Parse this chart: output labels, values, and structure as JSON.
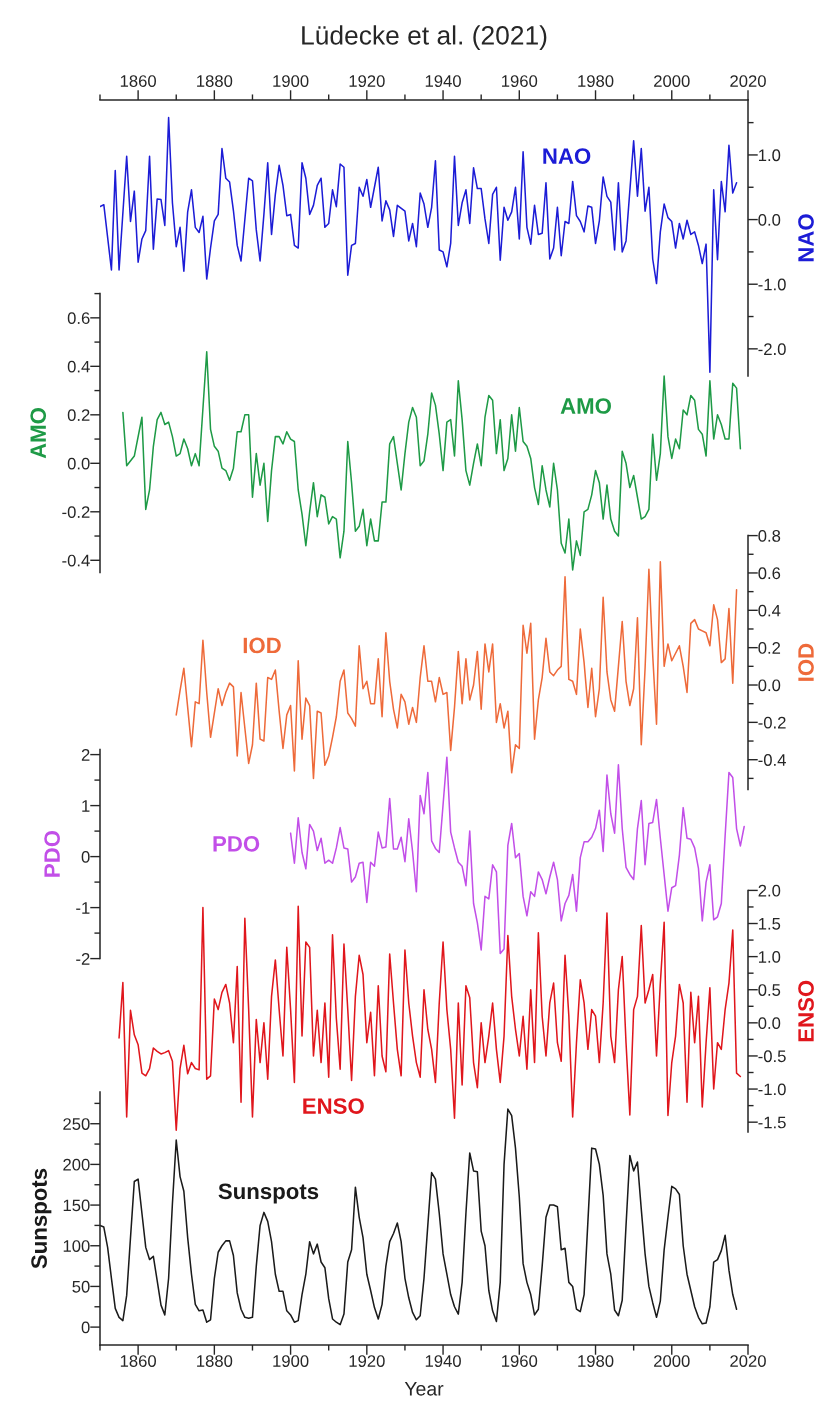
{
  "chart_data": [
    {
      "type": "line",
      "title": "Lüdecke et al. (2021)",
      "y2label": "NAO",
      "xlim": [
        1850,
        2020
      ],
      "xticks": [
        {
          "value": 1850,
          "label": null
        },
        1860,
        {
          "value": 1870,
          "label": null
        },
        1880,
        {
          "value": 1890,
          "label": null
        },
        1900,
        {
          "value": 1910,
          "label": null
        },
        1920,
        {
          "value": 1930,
          "label": null
        },
        1940,
        {
          "value": 1950,
          "label": null
        },
        1960,
        {
          "value": 1970,
          "label": null
        },
        1980,
        {
          "value": 1990,
          "label": null
        },
        2000,
        {
          "value": 2010,
          "label": null
        },
        2020
      ],
      "y2lim": [
        -2.42,
        1.85
      ],
      "y2ticks": [
        {
          "value": 1.5,
          "label": null
        },
        {
          "value": 1.0,
          "label": "1.0"
        },
        {
          "value": 0.5,
          "label": null
        },
        {
          "value": 0.0,
          "label": "0.0"
        },
        {
          "value": -0.5,
          "label": null
        },
        {
          "value": -1.0,
          "label": "-1.0"
        },
        {
          "value": -1.5,
          "label": null
        },
        {
          "value": -2.0,
          "label": "-2.0"
        }
      ],
      "x": [
        1850,
        1851,
        1853,
        1854,
        1855,
        1857,
        1858,
        1859,
        1860,
        1861,
        1862,
        1863,
        1864,
        1865,
        1866,
        1867,
        1868,
        1869,
        1870,
        1871,
        1872,
        1873,
        1874,
        1875,
        1876,
        1877,
        1878,
        1879,
        1880,
        1881,
        1882,
        1883,
        1884,
        1885,
        1886,
        1887,
        1889,
        1890,
        1891,
        1892,
        1893,
        1894,
        1895,
        1896,
        1897,
        1898,
        1899,
        1900,
        1901,
        1902,
        1903,
        1904,
        1905,
        1906,
        1907,
        1908,
        1909,
        1910,
        1911,
        1912,
        1913,
        1914,
        1915,
        1916,
        1917,
        1918,
        1919,
        1920,
        1921,
        1922,
        1923,
        1924,
        1925,
        1926,
        1927,
        1928,
        1930,
        1931,
        1932,
        1933,
        1934,
        1935,
        1936,
        1937,
        1938,
        1939,
        1940,
        1941,
        1942,
        1943,
        1944,
        1945,
        1946,
        1947,
        1948,
        1949,
        1950,
        1951,
        1952,
        1953,
        1954,
        1955,
        1956,
        1957,
        1958,
        1959,
        1960,
        1961,
        1962,
        1963,
        1964,
        1965,
        1966,
        1967,
        1968,
        1969,
        1970,
        1971,
        1972,
        1973,
        1974,
        1975,
        1976,
        1977,
        1978,
        1979,
        1980,
        1981,
        1982,
        1983,
        1984,
        1985,
        1986,
        1987,
        1988,
        1990,
        1991,
        1992,
        1993,
        1994,
        1995,
        1996,
        1997,
        1998,
        1999,
        2000,
        2001,
        2002,
        2003,
        2004,
        2005,
        2006,
        2007,
        2008,
        2009,
        2010,
        2011,
        2012,
        2013,
        2014,
        2015,
        2016,
        2017
      ],
      "series": [
        {
          "name": "NAO",
          "color": "#1c1cd6",
          "axis": "y2",
          "values": [
            0.2,
            0.23,
            -0.78,
            0.76,
            -0.78,
            0.98,
            -0.03,
            0.44,
            -0.66,
            -0.3,
            -0.17,
            0.98,
            -0.46,
            0.32,
            0.31,
            -0.09,
            1.58,
            0.26,
            -0.42,
            -0.12,
            -0.8,
            0.12,
            0.46,
            -0.12,
            -0.2,
            0.05,
            -0.92,
            -0.44,
            -0.02,
            0.08,
            1.1,
            0.64,
            0.58,
            0.14,
            -0.4,
            -0.64,
            0.64,
            0.6,
            -0.16,
            -0.64,
            0.08,
            0.88,
            -0.23,
            0.39,
            0.84,
            0.53,
            0.06,
            0.08,
            -0.4,
            -0.44,
            0.88,
            0.64,
            0.08,
            0.22,
            0.53,
            0.64,
            -0.12,
            -0.06,
            0.46,
            0.2,
            0.86,
            0.81,
            -0.86,
            -0.4,
            -0.37,
            0.5,
            0.36,
            0.62,
            0.19,
            0.5,
            0.81,
            -0.02,
            0.29,
            0.15,
            -0.26,
            0.22,
            0.13,
            -0.33,
            -0.06,
            -0.42,
            0.41,
            0.24,
            -0.12,
            0.19,
            0.91,
            -0.47,
            -0.5,
            -0.73,
            -0.37,
            0.98,
            -0.09,
            0.26,
            0.46,
            -0.06,
            0.8,
            0.48,
            0.48,
            0.01,
            -0.37,
            0.39,
            0.5,
            -0.63,
            0.19,
            -0.01,
            0.12,
            0.5,
            -0.3,
            1.05,
            -0.12,
            -0.38,
            0.22,
            -0.23,
            -0.21,
            0.57,
            -0.61,
            -0.44,
            0.19,
            -0.56,
            -0.03,
            -0.06,
            0.59,
            0.06,
            -0.03,
            -0.19,
            0.21,
            0.19,
            -0.37,
            -0.02,
            0.66,
            0.36,
            0.27,
            -0.47,
            0.57,
            -0.5,
            -0.33,
            1.22,
            0.36,
            1.1,
            0.13,
            0.5,
            -0.61,
            -0.99,
            -0.19,
            0.24,
            0.03,
            -0.03,
            -0.44,
            -0.06,
            -0.3,
            -0.01,
            -0.23,
            -0.19,
            -0.4,
            -0.68,
            -0.38,
            -2.36,
            0.46,
            -0.62,
            0.59,
            0.12,
            1.15,
            0.41,
            0.57
          ]
        }
      ]
    },
    {
      "type": "line",
      "ylabel": "AMO",
      "xlim": [
        1850,
        2020
      ],
      "tick_labels": "y",
      "ylim": [
        -0.45,
        0.7
      ],
      "yticks": [
        {
          "value": 0.7,
          "label": null
        },
        0.6,
        {
          "value": 0.5,
          "label": null
        },
        0.4,
        {
          "value": 0.3,
          "label": null
        },
        0.2,
        {
          "value": 0.1,
          "label": null
        },
        {
          "value": 0.0,
          "label": "0.0"
        },
        {
          "value": -0.1,
          "label": null
        },
        -0.2,
        {
          "value": -0.3,
          "label": null
        },
        -0.4
      ],
      "x": [
        1856,
        1857,
        1859,
        1861,
        1862,
        1863,
        1864,
        1865,
        1866,
        1867,
        1868,
        1869,
        1870,
        1871,
        1872,
        1873,
        1874,
        1875,
        1876,
        1878,
        1879,
        1880,
        1881,
        1882,
        1883,
        1884,
        1885,
        1886,
        1887,
        1888,
        1889,
        1890,
        1891,
        1892,
        1893,
        1894,
        1895,
        1896,
        1897,
        1898,
        1899,
        1900,
        1901,
        1902,
        1903,
        1904,
        1905,
        1906,
        1907,
        1908,
        1909,
        1910,
        1911,
        1912,
        1913,
        1914,
        1915,
        1916,
        1917,
        1918,
        1919,
        1920,
        1921,
        1922,
        1923,
        1924,
        1925,
        1926,
        1927,
        1928,
        1929,
        1930,
        1931,
        1932,
        1933,
        1934,
        1935,
        1936,
        1937,
        1938,
        1939,
        1940,
        1941,
        1942,
        1943,
        1944,
        1945,
        1946,
        1947,
        1948,
        1949,
        1950,
        1951,
        1952,
        1953,
        1954,
        1955,
        1956,
        1957,
        1958,
        1959,
        1960,
        1961,
        1962,
        1963,
        1964,
        1965,
        1966,
        1967,
        1968,
        1969,
        1970,
        1971,
        1972,
        1973,
        1974,
        1975,
        1976,
        1977,
        1978,
        1979,
        1980,
        1981,
        1982,
        1983,
        1984,
        1985,
        1986,
        1987,
        1988,
        1989,
        1990,
        1991,
        1992,
        1993,
        1994,
        1995,
        1996,
        1997,
        1998,
        1999,
        2000,
        2001,
        2002,
        2003,
        2004,
        2005,
        2006,
        2007,
        2008,
        2009,
        2010,
        2011,
        2012,
        2013,
        2014,
        2015,
        2016,
        2017,
        2018
      ],
      "series": [
        {
          "name": "AMO",
          "color": "#1e9a46",
          "values": [
            0.21,
            -0.01,
            0.03,
            0.19,
            -0.19,
            -0.11,
            0.07,
            0.18,
            0.21,
            0.16,
            0.17,
            0.11,
            0.03,
            0.04,
            0.1,
            0.06,
            -0.01,
            0.04,
            -0.01,
            0.46,
            0.14,
            0.07,
            0.05,
            -0.02,
            -0.03,
            -0.07,
            -0.02,
            0.13,
            0.13,
            0.2,
            0.2,
            -0.14,
            0.04,
            -0.09,
            0.0,
            -0.24,
            -0.03,
            0.11,
            0.11,
            0.08,
            0.13,
            0.1,
            0.09,
            -0.11,
            -0.21,
            -0.34,
            -0.2,
            -0.08,
            -0.22,
            -0.13,
            -0.14,
            -0.25,
            -0.22,
            -0.23,
            -0.39,
            -0.28,
            0.09,
            -0.08,
            -0.28,
            -0.26,
            -0.19,
            -0.34,
            -0.23,
            -0.32,
            -0.32,
            -0.16,
            -0.16,
            0.08,
            0.11,
            0.0,
            -0.11,
            0.04,
            0.17,
            0.23,
            0.19,
            -0.01,
            0.01,
            0.12,
            0.29,
            0.24,
            0.12,
            -0.03,
            0.17,
            0.18,
            0.03,
            0.34,
            0.18,
            -0.03,
            -0.09,
            0.0,
            0.08,
            -0.01,
            0.19,
            0.28,
            0.26,
            0.04,
            0.18,
            -0.03,
            0.02,
            0.2,
            0.05,
            0.23,
            0.09,
            0.07,
            0.02,
            -0.1,
            -0.17,
            -0.01,
            -0.11,
            -0.18,
            0.0,
            -0.11,
            -0.33,
            -0.37,
            -0.23,
            -0.44,
            -0.32,
            -0.38,
            -0.2,
            -0.19,
            -0.13,
            -0.03,
            -0.08,
            -0.23,
            -0.09,
            -0.23,
            -0.28,
            -0.3,
            0.05,
            0.0,
            -0.1,
            -0.05,
            -0.14,
            -0.23,
            -0.22,
            -0.19,
            0.12,
            -0.07,
            0.04,
            0.36,
            0.11,
            0.02,
            0.1,
            0.06,
            0.22,
            0.2,
            0.28,
            0.26,
            0.14,
            0.12,
            0.03,
            0.34,
            0.1,
            0.2,
            0.16,
            0.1,
            0.1,
            0.33,
            0.31,
            0.06
          ]
        }
      ]
    },
    {
      "type": "line",
      "y2label": "IOD",
      "tick_labels": "y",
      "y2lim": [
        -0.56,
        0.8
      ],
      "y2ticks": [
        0.8,
        {
          "value": 0.7,
          "label": null
        },
        0.6,
        {
          "value": 0.5,
          "label": null
        },
        0.4,
        {
          "value": 0.3,
          "label": null
        },
        0.2,
        {
          "value": 0.1,
          "label": null
        },
        {
          "value": 0.0,
          "label": "0.0"
        },
        {
          "value": -0.1,
          "label": null
        },
        -0.2,
        {
          "value": -0.3,
          "label": null
        },
        -0.4,
        {
          "value": -0.5,
          "label": null
        }
      ],
      "x": [
        1870,
        1871,
        1872,
        1873,
        1874,
        1875,
        1876,
        1877,
        1878,
        1879,
        1880,
        1881,
        1882,
        1883,
        1884,
        1885,
        1886,
        1887,
        1888,
        1889,
        1890,
        1891,
        1892,
        1893,
        1894,
        1895,
        1896,
        1897,
        1898,
        1899,
        1900,
        1901,
        1902,
        1903,
        1904,
        1905,
        1906,
        1907,
        1908,
        1909,
        1910,
        1911,
        1912,
        1913,
        1914,
        1915,
        1916,
        1917,
        1918,
        1919,
        1920,
        1921,
        1922,
        1923,
        1924,
        1925,
        1926,
        1927,
        1928,
        1929,
        1930,
        1931,
        1932,
        1933,
        1934,
        1935,
        1936,
        1937,
        1938,
        1939,
        1940,
        1941,
        1942,
        1943,
        1944,
        1945,
        1946,
        1947,
        1948,
        1949,
        1950,
        1951,
        1952,
        1953,
        1954,
        1955,
        1956,
        1957,
        1958,
        1959,
        1960,
        1961,
        1962,
        1963,
        1964,
        1965,
        1966,
        1967,
        1968,
        1969,
        1970,
        1971,
        1972,
        1973,
        1974,
        1975,
        1976,
        1977,
        1978,
        1979,
        1980,
        1981,
        1982,
        1983,
        1984,
        1985,
        1986,
        1987,
        1988,
        1989,
        1990,
        1991,
        1992,
        1993,
        1994,
        1995,
        1996,
        1997,
        1998,
        1999,
        2000,
        2001,
        2002,
        2003,
        2004,
        2005,
        2006,
        2007,
        2008,
        2009,
        2010,
        2011,
        2012,
        2013,
        2014,
        2015,
        2016,
        2017
      ],
      "series": [
        {
          "name": "IOD",
          "color": "#ee6a3a",
          "axis": "y2",
          "values": [
            -0.16,
            -0.03,
            0.09,
            -0.12,
            -0.33,
            -0.09,
            -0.1,
            0.24,
            -0.04,
            -0.28,
            -0.15,
            -0.02,
            -0.11,
            -0.04,
            0.01,
            -0.01,
            -0.38,
            -0.04,
            -0.23,
            -0.42,
            -0.32,
            0.01,
            -0.29,
            -0.3,
            0.04,
            0.03,
            0.08,
            -0.14,
            -0.34,
            -0.16,
            -0.11,
            -0.46,
            0.13,
            -0.29,
            -0.07,
            -0.11,
            -0.5,
            -0.14,
            -0.15,
            -0.43,
            -0.38,
            -0.28,
            -0.17,
            0.02,
            0.08,
            -0.15,
            -0.18,
            -0.22,
            0.21,
            -0.02,
            0.02,
            -0.1,
            -0.1,
            0.14,
            -0.17,
            0.28,
            0.02,
            -0.13,
            -0.23,
            -0.05,
            -0.09,
            -0.21,
            -0.12,
            -0.2,
            0.04,
            0.21,
            0.02,
            0.02,
            -0.09,
            0.04,
            -0.05,
            -0.04,
            -0.35,
            -0.12,
            0.18,
            -0.1,
            0.14,
            -0.08,
            0.0,
            0.18,
            -0.13,
            0.22,
            0.07,
            0.22,
            -0.2,
            -0.1,
            -0.23,
            -0.14,
            -0.47,
            -0.32,
            -0.34,
            0.32,
            0.17,
            0.33,
            -0.29,
            -0.08,
            0.04,
            0.25,
            0.07,
            0.05,
            0.08,
            0.1,
            0.58,
            0.03,
            0.02,
            -0.05,
            0.3,
            0.12,
            -0.12,
            0.09,
            -0.17,
            -0.02,
            0.47,
            0.07,
            -0.08,
            -0.14,
            0.1,
            0.34,
            0.02,
            -0.11,
            -0.02,
            0.36,
            -0.32,
            0.09,
            0.62,
            0.16,
            -0.21,
            0.66,
            0.1,
            0.22,
            0.13,
            0.17,
            0.21,
            0.1,
            -0.04,
            0.33,
            0.35,
            0.3,
            0.29,
            0.28,
            0.21,
            0.43,
            0.35,
            0.12,
            0.14,
            0.41,
            0.01,
            0.51
          ]
        }
      ]
    },
    {
      "type": "line",
      "ylabel": "PDO",
      "xlim": [
        1850,
        2020
      ],
      "tick_labels": "y",
      "ylim": [
        -2,
        2.1
      ],
      "yticks": [
        2,
        {
          "value": 1.5,
          "label": null
        },
        1,
        {
          "value": 0.5,
          "label": null
        },
        0,
        {
          "value": -0.5,
          "label": null
        },
        -1,
        {
          "value": -1.5,
          "label": null
        },
        -2
      ],
      "x": [
        1900,
        1901,
        1902,
        1903,
        1904,
        1905,
        1906,
        1907,
        1908,
        1909,
        1910,
        1911,
        1912,
        1913,
        1914,
        1915,
        1916,
        1917,
        1918,
        1919,
        1920,
        1921,
        1922,
        1923,
        1924,
        1925,
        1926,
        1927,
        1928,
        1929,
        1930,
        1931,
        1932,
        1933,
        1934,
        1935,
        1936,
        1937,
        1938,
        1939,
        1941,
        1942,
        1943,
        1944,
        1945,
        1946,
        1947,
        1948,
        1949,
        1950,
        1951,
        1952,
        1953,
        1954,
        1955,
        1956,
        1957,
        1958,
        1959,
        1960,
        1961,
        1962,
        1963,
        1964,
        1965,
        1966,
        1967,
        1968,
        1969,
        1970,
        1971,
        1972,
        1973,
        1974,
        1975,
        1976,
        1977,
        1978,
        1979,
        1980,
        1981,
        1982,
        1983,
        1984,
        1985,
        1986,
        1987,
        1988,
        1989,
        1990,
        1991,
        1992,
        1993,
        1994,
        1995,
        1996,
        1997,
        1999,
        2000,
        2001,
        2002,
        2003,
        2004,
        2005,
        2006,
        2007,
        2008,
        2009,
        2010,
        2011,
        2012,
        2013,
        2014,
        2015,
        2016,
        2017,
        2018,
        2019
      ],
      "series": [
        {
          "name": "PDO",
          "color": "#c24fe8",
          "values": [
            0.46,
            -0.13,
            0.76,
            0.08,
            -0.24,
            0.63,
            0.5,
            0.12,
            0.36,
            -0.13,
            -0.07,
            -0.13,
            0.17,
            0.57,
            0.17,
            0.15,
            -0.5,
            -0.4,
            -0.13,
            -0.11,
            -0.9,
            -0.11,
            -0.19,
            0.48,
            0.17,
            0.19,
            1.14,
            0.15,
            0.15,
            0.38,
            -0.1,
            0.74,
            0.1,
            -0.69,
            1.2,
            0.84,
            1.65,
            0.31,
            0.16,
            0.08,
            1.95,
            0.48,
            0.17,
            -0.11,
            -0.19,
            -0.57,
            0.5,
            -0.92,
            -1.3,
            -1.83,
            -0.78,
            -0.83,
            -0.16,
            -0.3,
            -1.9,
            -1.81,
            0.22,
            0.65,
            -0.02,
            0.06,
            -0.78,
            -1.16,
            -0.69,
            -0.78,
            -0.3,
            -0.45,
            -0.73,
            -0.4,
            -0.11,
            -0.45,
            -1.26,
            -0.92,
            -0.76,
            -0.35,
            -1.07,
            -0.02,
            0.29,
            0.29,
            0.38,
            0.55,
            0.91,
            0.1,
            1.6,
            0.84,
            0.46,
            1.8,
            0.55,
            -0.21,
            -0.35,
            -0.45,
            0.55,
            1.1,
            -0.16,
            0.65,
            0.67,
            1.12,
            0.36,
            -1.07,
            -0.61,
            -0.57,
            0.03,
            0.96,
            0.36,
            0.34,
            0.17,
            -0.23,
            -1.26,
            -0.5,
            -0.16,
            -1.24,
            -1.18,
            -0.92,
            0.41,
            1.65,
            1.55,
            0.55,
            0.21,
            0.59
          ]
        }
      ]
    },
    {
      "type": "line",
      "y2label": "ENSO",
      "tick_labels": "y",
      "y2lim": [
        -1.65,
        2.0
      ],
      "y2ticks": [
        {
          "value": 2.0,
          "label": "2.0"
        },
        {
          "value": 1.75,
          "label": null
        },
        {
          "value": 1.5,
          "label": "1.5"
        },
        {
          "value": 1.25,
          "label": null
        },
        {
          "value": 1.0,
          "label": "1.0"
        },
        {
          "value": 0.75,
          "label": null
        },
        {
          "value": 0.5,
          "label": "0.5"
        },
        {
          "value": 0.25,
          "label": null
        },
        {
          "value": 0.0,
          "label": "0.0"
        },
        {
          "value": -0.25,
          "label": null
        },
        {
          "value": -0.5,
          "label": "-0.5"
        },
        {
          "value": -0.75,
          "label": null
        },
        {
          "value": -1.0,
          "label": "-1.0"
        },
        {
          "value": -1.25,
          "label": null
        },
        {
          "value": -1.5,
          "label": "-1.5"
        }
      ],
      "x": [
        1855,
        1856,
        1857,
        1858,
        1859,
        1860,
        1861,
        1862,
        1863,
        1864,
        1865,
        1866,
        1867,
        1868,
        1869,
        1870,
        1871,
        1872,
        1873,
        1874,
        1875,
        1876,
        1877,
        1878,
        1879,
        1880,
        1881,
        1882,
        1883,
        1884,
        1885,
        1886,
        1887,
        1888,
        1889,
        1890,
        1891,
        1892,
        1893,
        1894,
        1895,
        1896,
        1897,
        1898,
        1899,
        1900,
        1901,
        1902,
        1903,
        1904,
        1905,
        1906,
        1907,
        1908,
        1909,
        1910,
        1911,
        1912,
        1913,
        1914,
        1915,
        1916,
        1917,
        1918,
        1919,
        1920,
        1921,
        1922,
        1923,
        1924,
        1925,
        1926,
        1927,
        1928,
        1929,
        1930,
        1931,
        1932,
        1933,
        1934,
        1935,
        1936,
        1937,
        1938,
        1939,
        1940,
        1941,
        1942,
        1943,
        1944,
        1945,
        1946,
        1947,
        1948,
        1949,
        1950,
        1951,
        1952,
        1953,
        1954,
        1955,
        1956,
        1957,
        1958,
        1959,
        1960,
        1961,
        1962,
        1963,
        1964,
        1965,
        1966,
        1967,
        1968,
        1969,
        1970,
        1971,
        1972,
        1973,
        1974,
        1975,
        1976,
        1977,
        1978,
        1979,
        1980,
        1981,
        1982,
        1983,
        1984,
        1985,
        1986,
        1987,
        1988,
        1989,
        1990,
        1991,
        1992,
        1993,
        1994,
        1995,
        1996,
        1997,
        1998,
        1999,
        2000,
        2001,
        2002,
        2003,
        2004,
        2005,
        2006,
        2007,
        2008,
        2009,
        2010,
        2011,
        2012,
        2013,
        2014,
        2015,
        2016,
        2017,
        2018
      ],
      "series": [
        {
          "name": "ENSO",
          "color": "#e0161c",
          "axis": "y2",
          "values": [
            -0.23,
            0.61,
            -1.42,
            0.19,
            -0.18,
            -0.33,
            -0.76,
            -0.8,
            -0.69,
            -0.38,
            -0.43,
            -0.47,
            -0.45,
            -0.42,
            -0.58,
            -1.62,
            -0.69,
            -0.34,
            -0.77,
            -0.6,
            -0.69,
            -0.71,
            1.74,
            -0.85,
            -0.8,
            0.36,
            0.2,
            0.46,
            0.58,
            0.3,
            -0.3,
            0.85,
            -1.2,
            1.58,
            0.2,
            -1.42,
            0.05,
            -0.6,
            0.0,
            -0.85,
            0.4,
            0.95,
            0.2,
            -0.5,
            1.14,
            0.2,
            -0.9,
            1.76,
            -0.2,
            1.22,
            1.14,
            -0.5,
            0.19,
            -0.6,
            0.3,
            -0.82,
            1.33,
            0.07,
            -0.7,
            1.19,
            0.2,
            -0.87,
            0.4,
            1.02,
            0.73,
            -0.3,
            0.16,
            -0.8,
            0.56,
            -0.5,
            -0.74,
            1.04,
            0.3,
            -0.4,
            -0.8,
            1.1,
            0.3,
            -0.2,
            -0.6,
            -0.82,
            0.5,
            -0.1,
            -0.4,
            -0.9,
            0.3,
            1.22,
            0.2,
            -0.4,
            -1.44,
            0.3,
            -0.94,
            0.56,
            0.38,
            -0.6,
            -0.98,
            0.0,
            -0.6,
            -0.2,
            0.3,
            -0.4,
            -0.9,
            -0.2,
            1.32,
            0.4,
            -0.1,
            -0.5,
            0.1,
            -0.7,
            0.5,
            -0.6,
            1.36,
            0.1,
            -0.5,
            0.3,
            0.6,
            -0.3,
            -0.58,
            1.02,
            0.1,
            -1.42,
            -0.3,
            0.65,
            0.3,
            -0.4,
            0.2,
            0.1,
            -0.6,
            0.3,
            1.66,
            -0.2,
            -0.6,
            0.5,
            1.0,
            -0.3,
            -1.39,
            0.2,
            0.4,
            1.47,
            0.3,
            0.5,
            0.73,
            -0.5,
            0.6,
            1.52,
            -1.4,
            -0.6,
            -0.2,
            0.58,
            0.3,
            -1.2,
            0.46,
            -0.3,
            0.4,
            -1.27,
            -0.3,
            0.53,
            -1.0,
            -0.3,
            -0.4,
            0.2,
            0.6,
            1.4,
            -0.76,
            -0.81
          ]
        }
      ]
    },
    {
      "type": "line",
      "ylabel": "Sunspots",
      "xlabel": "Year",
      "xlim": [
        1850,
        2020
      ],
      "xticks": [
        {
          "value": 1850,
          "label": null
        },
        1860,
        {
          "value": 1870,
          "label": null
        },
        1880,
        {
          "value": 1890,
          "label": null
        },
        1900,
        {
          "value": 1910,
          "label": null
        },
        1920,
        {
          "value": 1930,
          "label": null
        },
        1940,
        {
          "value": 1950,
          "label": null
        },
        1960,
        {
          "value": 1970,
          "label": null
        },
        1980,
        {
          "value": 1990,
          "label": null
        },
        2000,
        {
          "value": 2010,
          "label": null
        },
        2020
      ],
      "ylim": [
        -22,
        289
      ],
      "yticks": [
        {
          "value": 275,
          "label": null
        },
        250,
        {
          "value": 225,
          "label": null
        },
        200,
        {
          "value": 175,
          "label": null
        },
        150,
        {
          "value": 125,
          "label": null
        },
        100,
        {
          "value": 75,
          "label": null
        },
        50,
        {
          "value": 25,
          "label": null
        },
        0
      ],
      "x": [
        1850,
        1851,
        1852,
        1853,
        1854,
        1855,
        1856,
        1857,
        1858,
        1859,
        1860,
        1861,
        1862,
        1863,
        1864,
        1865,
        1866,
        1867,
        1868,
        1869,
        1870,
        1871,
        1872,
        1873,
        1874,
        1875,
        1876,
        1877,
        1878,
        1879,
        1880,
        1881,
        1882,
        1883,
        1884,
        1885,
        1886,
        1887,
        1888,
        1889,
        1890,
        1891,
        1892,
        1893,
        1894,
        1895,
        1896,
        1897,
        1898,
        1899,
        1900,
        1901,
        1902,
        1903,
        1904,
        1905,
        1906,
        1907,
        1908,
        1909,
        1910,
        1911,
        1912,
        1913,
        1914,
        1915,
        1916,
        1917,
        1918,
        1919,
        1920,
        1921,
        1922,
        1923,
        1924,
        1925,
        1926,
        1927,
        1928,
        1929,
        1930,
        1931,
        1932,
        1933,
        1934,
        1935,
        1936,
        1937,
        1938,
        1939,
        1940,
        1941,
        1942,
        1943,
        1944,
        1945,
        1946,
        1947,
        1948,
        1949,
        1950,
        1951,
        1952,
        1953,
        1954,
        1955,
        1956,
        1957,
        1958,
        1959,
        1960,
        1961,
        1962,
        1963,
        1964,
        1965,
        1966,
        1967,
        1968,
        1969,
        1970,
        1971,
        1972,
        1973,
        1974,
        1975,
        1976,
        1977,
        1978,
        1979,
        1980,
        1981,
        1982,
        1983,
        1984,
        1985,
        1986,
        1987,
        1988,
        1989,
        1990,
        1991,
        1992,
        1993,
        1994,
        1995,
        1996,
        1997,
        1998,
        1999,
        2000,
        2001,
        2002,
        2003,
        2004,
        2005,
        2006,
        2007,
        2008,
        2009,
        2010,
        2011,
        2012,
        2013,
        2014,
        2015,
        2016,
        2017
      ],
      "series": [
        {
          "name": "Sunspots",
          "color": "#1a1a1a",
          "values": [
            125,
            123,
            98,
            60,
            23,
            12,
            8,
            39,
            110,
            179,
            182,
            140,
            98,
            83,
            87,
            57,
            27,
            15,
            60,
            152,
            230,
            185,
            167,
            110,
            65,
            28,
            20,
            21,
            6,
            9,
            60,
            92,
            100,
            106,
            106,
            88,
            42,
            22,
            12,
            11,
            12,
            75,
            125,
            141,
            130,
            105,
            65,
            44,
            44,
            20,
            15,
            6,
            8,
            40,
            65,
            105,
            90,
            102,
            80,
            73,
            35,
            10,
            6,
            3,
            16,
            80,
            95,
            172,
            135,
            110,
            65,
            45,
            24,
            10,
            28,
            75,
            105,
            115,
            128,
            105,
            60,
            36,
            18,
            9,
            14,
            60,
            125,
            190,
            182,
            140,
            90,
            65,
            40,
            25,
            16,
            55,
            140,
            214,
            192,
            191,
            118,
            100,
            45,
            20,
            7,
            55,
            200,
            268,
            260,
            220,
            160,
            78,
            55,
            40,
            15,
            22,
            75,
            135,
            150,
            150,
            148,
            95,
            97,
            55,
            50,
            22,
            19,
            40,
            130,
            220,
            219,
            200,
            162,
            90,
            65,
            21,
            14,
            33,
            125,
            211,
            192,
            203,
            145,
            90,
            50,
            30,
            12,
            32,
            95,
            135,
            173,
            170,
            163,
            100,
            65,
            45,
            25,
            12,
            4,
            5,
            25,
            80,
            83,
            94,
            113,
            70,
            40,
            22
          ]
        }
      ]
    }
  ]
}
